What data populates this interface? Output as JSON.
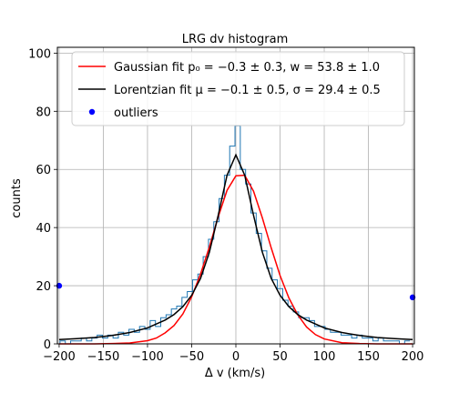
{
  "chart_data": {
    "type": "line",
    "title": "LRG dv histogram",
    "xlabel": "Δ v (km/s)",
    "ylabel": "counts",
    "xlim": [
      -202,
      202
    ],
    "ylim": [
      0,
      102
    ],
    "xticks": [
      -200,
      -150,
      -100,
      -50,
      0,
      50,
      100,
      150,
      200
    ],
    "yticks": [
      0,
      20,
      40,
      60,
      80,
      100
    ],
    "grid": true,
    "legend_position": "top",
    "legend": [
      {
        "label": "Gaussian fit p₀ = −0.3 ± 0.3, w = 53.8 ± 1.0",
        "color": "#ff0000",
        "kind": "line"
      },
      {
        "label": "Lorentzian fit μ = −0.1 ± 0.5, σ = 29.4 ± 0.5",
        "color": "#000000",
        "kind": "line"
      },
      {
        "label": "outliers",
        "color": "#0000ff",
        "kind": "marker"
      }
    ],
    "series": [
      {
        "name": "Gaussian fit",
        "color": "#ff0000",
        "x": [
          -200,
          -180,
          -160,
          -140,
          -120,
          -100,
          -90,
          -80,
          -70,
          -60,
          -50,
          -40,
          -30,
          -20,
          -10,
          0,
          10,
          20,
          30,
          40,
          50,
          60,
          70,
          80,
          90,
          100,
          120,
          140,
          160,
          180,
          200
        ],
        "y": [
          0,
          0,
          0,
          0.1,
          0.3,
          1.1,
          2.0,
          3.8,
          6.3,
          10.3,
          16.2,
          24.0,
          33.3,
          43.7,
          52.8,
          57.8,
          58.0,
          52.5,
          43.3,
          33.0,
          23.5,
          15.8,
          10.0,
          5.8,
          3.2,
          1.7,
          0.4,
          0.1,
          0,
          0,
          0
        ]
      },
      {
        "name": "Lorentzian fit",
        "color": "#000000",
        "x": [
          -200,
          -180,
          -160,
          -140,
          -120,
          -100,
          -80,
          -70,
          -60,
          -50,
          -40,
          -30,
          -20,
          -10,
          0,
          10,
          20,
          30,
          40,
          50,
          60,
          70,
          80,
          100,
          120,
          140,
          160,
          180,
          200
        ],
        "y": [
          1.5,
          1.8,
          2.2,
          2.9,
          3.9,
          5.5,
          8.2,
          10.1,
          12.8,
          16.7,
          22.5,
          31.5,
          44.2,
          58.0,
          65.0,
          58.0,
          44.2,
          31.5,
          22.5,
          16.7,
          12.8,
          10.1,
          8.2,
          5.5,
          3.9,
          2.9,
          2.2,
          1.8,
          1.5
        ]
      },
      {
        "name": "histogram",
        "color": "#1f77b4",
        "x": [
          -196,
          -190,
          -184,
          -178,
          -172,
          -166,
          -160,
          -154,
          -148,
          -142,
          -136,
          -130,
          -124,
          -118,
          -112,
          -106,
          -100,
          -94,
          -88,
          -82,
          -76,
          -70,
          -64,
          -58,
          -52,
          -46,
          -40,
          -34,
          -28,
          -22,
          -16,
          -10,
          -4,
          2,
          8,
          14,
          20,
          26,
          32,
          38,
          44,
          50,
          56,
          62,
          68,
          74,
          80,
          86,
          92,
          98,
          104,
          110,
          116,
          122,
          128,
          134,
          140,
          146,
          152,
          158,
          164,
          170,
          176,
          182,
          188,
          194
        ],
        "y": [
          1,
          0,
          1,
          1,
          2,
          1,
          2,
          3,
          2,
          3,
          2,
          4,
          3,
          5,
          4,
          6,
          5,
          8,
          6,
          9,
          10,
          12,
          13,
          16,
          18,
          22,
          24,
          30,
          36,
          42,
          50,
          58,
          68,
          75,
          60,
          55,
          45,
          38,
          32,
          26,
          22,
          19,
          15,
          13,
          11,
          9,
          9,
          8,
          6,
          6,
          5,
          4,
          4,
          3,
          3,
          2,
          3,
          2,
          2,
          1,
          2,
          1,
          1,
          1,
          0,
          1
        ]
      },
      {
        "name": "outliers",
        "color": "#0000ff",
        "x": [
          -200,
          200
        ],
        "y": [
          20,
          16
        ]
      }
    ]
  }
}
